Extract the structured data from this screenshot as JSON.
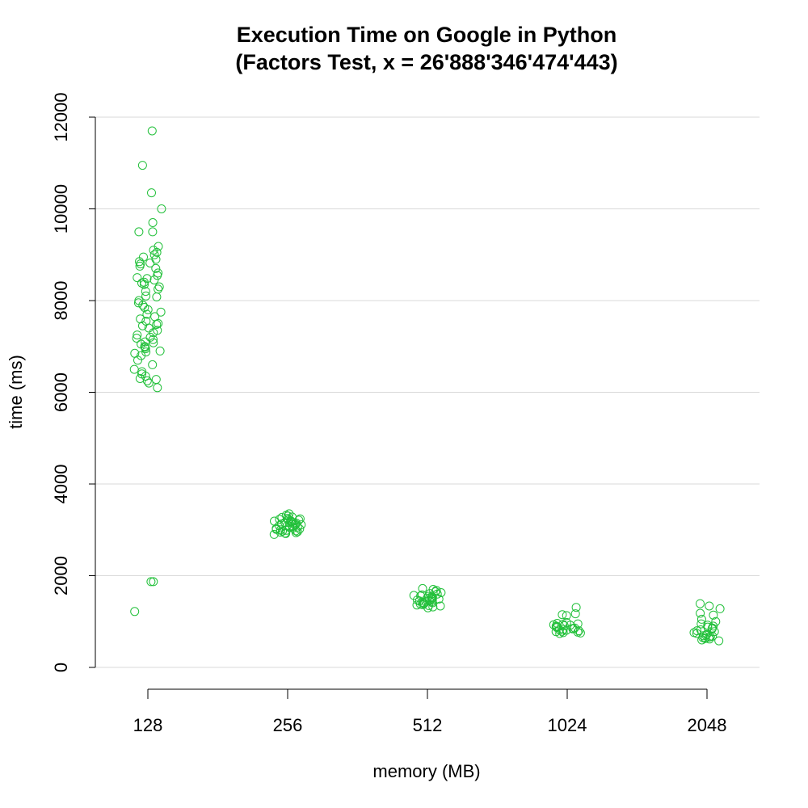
{
  "chart_data": {
    "type": "scatter",
    "title": "Execution Time on Google in Python",
    "subtitle": "(Factors Test, x = 26'888'346'474'443)",
    "xlabel": "memory (MB)",
    "ylabel": "time (ms)",
    "categories": [
      "128",
      "256",
      "512",
      "1024",
      "2048"
    ],
    "y_ticks": [
      0,
      2000,
      4000,
      6000,
      8000,
      10000,
      12000
    ],
    "ylim": [
      0,
      12000
    ],
    "grid": true,
    "marker_color": "#22c03a",
    "groups": [
      {
        "category": "128",
        "values": [
          11700,
          10950,
          10350,
          10000,
          9700,
          9500,
          9500,
          9180,
          9100,
          9050,
          9000,
          8950,
          8900,
          8850,
          8820,
          8800,
          8750,
          8700,
          8600,
          8550,
          8500,
          8480,
          8450,
          8400,
          8380,
          8350,
          8300,
          8250,
          8200,
          8100,
          8080,
          8000,
          7950,
          7900,
          7850,
          7800,
          7750,
          7700,
          7650,
          7600,
          7550,
          7500,
          7480,
          7450,
          7400,
          7350,
          7300,
          7250,
          7200,
          7180,
          7150,
          7100,
          7080,
          7050,
          7000,
          6980,
          6950,
          6900,
          6880,
          6850,
          6800,
          6700,
          6600,
          6500,
          6450,
          6400,
          6350,
          6300,
          6280,
          6250,
          6200,
          6100,
          1870,
          1870,
          1220
        ]
      },
      {
        "category": "256",
        "values": [
          3350,
          3320,
          3300,
          3280,
          3270,
          3250,
          3240,
          3230,
          3220,
          3210,
          3200,
          3190,
          3180,
          3170,
          3160,
          3150,
          3140,
          3130,
          3120,
          3110,
          3100,
          3090,
          3080,
          3070,
          3060,
          3050,
          3040,
          3030,
          3020,
          3010,
          3000,
          2990,
          2980,
          2970,
          2960,
          2950,
          2940,
          2930,
          2920,
          2900
        ]
      },
      {
        "category": "512",
        "values": [
          1720,
          1700,
          1680,
          1650,
          1630,
          1610,
          1600,
          1580,
          1570,
          1560,
          1550,
          1540,
          1530,
          1520,
          1510,
          1500,
          1490,
          1480,
          1470,
          1460,
          1450,
          1440,
          1430,
          1420,
          1410,
          1400,
          1390,
          1380,
          1370,
          1360,
          1350,
          1340,
          1320,
          1300
        ]
      },
      {
        "category": "1024",
        "values": [
          1310,
          1170,
          1150,
          1130,
          980,
          960,
          950,
          940,
          930,
          920,
          910,
          900,
          890,
          880,
          870,
          860,
          850,
          840,
          830,
          820,
          810,
          800,
          790,
          780,
          770,
          760,
          750,
          740
        ]
      },
      {
        "category": "2048",
        "values": [
          1390,
          1340,
          1280,
          1180,
          1140,
          1050,
          1000,
          950,
          920,
          900,
          880,
          860,
          840,
          820,
          800,
          780,
          760,
          740,
          720,
          700,
          690,
          680,
          670,
          660,
          650,
          640,
          630,
          620,
          600,
          580
        ]
      }
    ]
  }
}
